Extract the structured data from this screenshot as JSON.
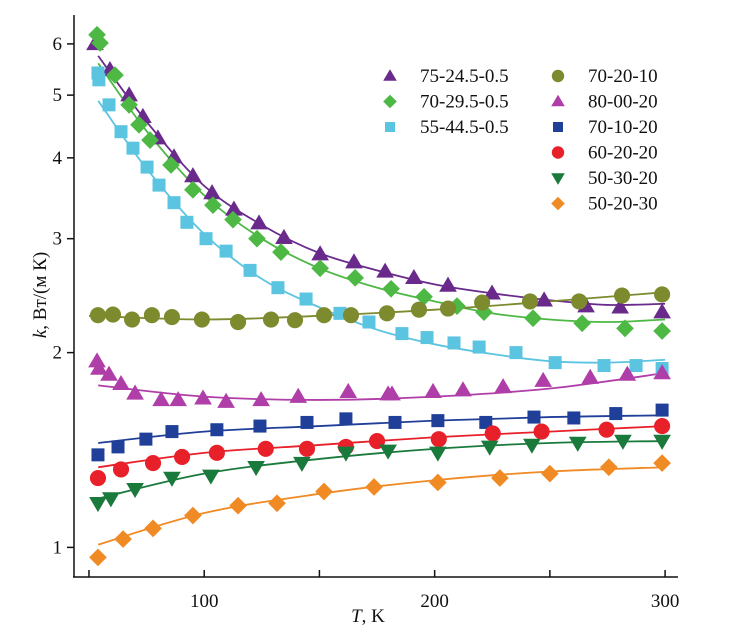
{
  "chart_data": {
    "type": "scatter",
    "title": "",
    "xlabel_italic": "T",
    "xlabel_rest": ", K",
    "ylabel_italic": "k",
    "ylabel_rest": ", Вт/(м К)",
    "xlim": [
      43.5,
      305.6
    ],
    "ylim": [
      0.9,
      6.65
    ],
    "yscale": "log",
    "x_ticks": [
      50,
      100,
      150,
      200,
      250,
      300
    ],
    "x_tick_labels": [
      "",
      "100",
      "",
      "200",
      "",
      "300"
    ],
    "y_ticks": [
      1,
      2,
      3,
      4,
      5,
      6
    ],
    "y_tick_labels": [
      "1",
      "2",
      "3",
      "4",
      "5",
      "6"
    ],
    "grid": false,
    "legend_position": "top-right",
    "series": [
      {
        "name": "75-24.5-0.5",
        "marker": "triangle-up",
        "color": "#6a2a8c",
        "legend_column": 0,
        "points": [
          [
            52.6,
            6.0
          ],
          [
            59.1,
            5.47
          ],
          [
            67.4,
            5.0
          ],
          [
            73.4,
            4.63
          ],
          [
            79.9,
            4.29
          ],
          [
            86.9,
            4.01
          ],
          [
            95.1,
            3.75
          ],
          [
            103.4,
            3.53
          ],
          [
            112.9,
            3.33
          ],
          [
            123.8,
            3.17
          ],
          [
            134.6,
            3.01
          ],
          [
            150.3,
            2.84
          ],
          [
            165.0,
            2.76
          ],
          [
            178.5,
            2.67
          ],
          [
            191.0,
            2.61
          ],
          [
            205.8,
            2.54
          ],
          [
            224.9,
            2.47
          ],
          [
            247.5,
            2.41
          ],
          [
            265.7,
            2.36
          ],
          [
            280.5,
            2.35
          ],
          [
            298.7,
            2.31
          ]
        ],
        "fit": [
          [
            54,
            5.75
          ],
          [
            75,
            4.55
          ],
          [
            100,
            3.62
          ],
          [
            125,
            3.15
          ],
          [
            150,
            2.85
          ],
          [
            175,
            2.68
          ],
          [
            200,
            2.55
          ],
          [
            225,
            2.47
          ],
          [
            250,
            2.41
          ],
          [
            275,
            2.37
          ],
          [
            300,
            2.38
          ]
        ]
      },
      {
        "name": "70-29.5-0.5",
        "marker": "diamond",
        "color": "#4db843",
        "legend_column": 0,
        "points": [
          [
            53.5,
            6.2
          ],
          [
            54.8,
            6.02
          ],
          [
            61.3,
            5.37
          ],
          [
            67.4,
            4.83
          ],
          [
            71.7,
            4.5
          ],
          [
            76.5,
            4.26
          ],
          [
            85.6,
            3.9
          ],
          [
            95.1,
            3.57
          ],
          [
            103.8,
            3.38
          ],
          [
            112.5,
            3.21
          ],
          [
            122.9,
            3.0
          ],
          [
            133.3,
            2.86
          ],
          [
            150.3,
            2.7
          ],
          [
            165.5,
            2.61
          ],
          [
            181.1,
            2.51
          ],
          [
            195.4,
            2.44
          ],
          [
            209.7,
            2.36
          ],
          [
            221.4,
            2.31
          ],
          [
            242.7,
            2.26
          ],
          [
            264.0,
            2.22
          ],
          [
            282.6,
            2.18
          ],
          [
            298.7,
            2.16
          ]
        ],
        "fit": [
          [
            54,
            5.6
          ],
          [
            75,
            4.4
          ],
          [
            100,
            3.5
          ],
          [
            125,
            3.0
          ],
          [
            150,
            2.7
          ],
          [
            175,
            2.52
          ],
          [
            200,
            2.4
          ],
          [
            225,
            2.3
          ],
          [
            250,
            2.25
          ],
          [
            275,
            2.23
          ],
          [
            300,
            2.25
          ]
        ]
      },
      {
        "name": "55-44.5-0.5",
        "marker": "square",
        "color": "#5bc4e0",
        "legend_column": 0,
        "points": [
          [
            53.9,
            5.41
          ],
          [
            54.3,
            5.28
          ],
          [
            58.7,
            4.83
          ],
          [
            63.9,
            4.39
          ],
          [
            69.1,
            4.14
          ],
          [
            75.2,
            3.87
          ],
          [
            80.4,
            3.63
          ],
          [
            86.9,
            3.41
          ],
          [
            92.5,
            3.18
          ],
          [
            100.8,
            3.0
          ],
          [
            109.5,
            2.87
          ],
          [
            119.9,
            2.68
          ],
          [
            132.0,
            2.52
          ],
          [
            144.2,
            2.42
          ],
          [
            158.9,
            2.3
          ],
          [
            171.5,
            2.23
          ],
          [
            185.8,
            2.14
          ],
          [
            196.7,
            2.11
          ],
          [
            208.4,
            2.07
          ],
          [
            219.3,
            2.04
          ],
          [
            235.3,
            2.0
          ],
          [
            252.3,
            1.93
          ],
          [
            273.5,
            1.91
          ],
          [
            287.4,
            1.91
          ],
          [
            298.7,
            1.89
          ]
        ],
        "fit": [
          [
            54,
            4.9
          ],
          [
            75,
            3.85
          ],
          [
            100,
            3.05
          ],
          [
            125,
            2.6
          ],
          [
            150,
            2.35
          ],
          [
            175,
            2.17
          ],
          [
            200,
            2.06
          ],
          [
            225,
            1.99
          ],
          [
            250,
            1.94
          ],
          [
            275,
            1.93
          ],
          [
            300,
            1.95
          ]
        ]
      },
      {
        "name": "70-20-10",
        "marker": "circle",
        "color": "#7d8a2e",
        "legend_column": 1,
        "points": [
          [
            53.9,
            2.285
          ],
          [
            60.4,
            2.29
          ],
          [
            68.7,
            2.25
          ],
          [
            77.3,
            2.285
          ],
          [
            86.0,
            2.27
          ],
          [
            99.0,
            2.25
          ],
          [
            114.7,
            2.23
          ],
          [
            129.0,
            2.25
          ],
          [
            139.4,
            2.245
          ],
          [
            152.0,
            2.285
          ],
          [
            163.7,
            2.285
          ],
          [
            179.3,
            2.3
          ],
          [
            193.2,
            2.33
          ],
          [
            205.8,
            2.34
          ],
          [
            220.6,
            2.39
          ],
          [
            241.4,
            2.4
          ],
          [
            262.7,
            2.4
          ],
          [
            281.3,
            2.45
          ],
          [
            298.7,
            2.46
          ]
        ],
        "fit": [
          [
            50,
            2.28
          ],
          [
            100,
            2.25
          ],
          [
            150,
            2.28
          ],
          [
            200,
            2.33
          ],
          [
            250,
            2.4
          ],
          [
            300,
            2.48
          ]
        ]
      },
      {
        "name": "80-00-20",
        "marker": "triangle-up",
        "color": "#b03ea8",
        "legend_column": 1,
        "points": [
          [
            53.5,
            1.94
          ],
          [
            54.3,
            1.89
          ],
          [
            58.7,
            1.85
          ],
          [
            63.9,
            1.79
          ],
          [
            70.0,
            1.73
          ],
          [
            81.3,
            1.69
          ],
          [
            88.7,
            1.69
          ],
          [
            99.5,
            1.7
          ],
          [
            109.5,
            1.68
          ],
          [
            124.7,
            1.69
          ],
          [
            140.8,
            1.71
          ],
          [
            162.5,
            1.74
          ],
          [
            179.8,
            1.725
          ],
          [
            181.5,
            1.725
          ],
          [
            199.3,
            1.74
          ],
          [
            212.3,
            1.75
          ],
          [
            229.7,
            1.77
          ],
          [
            247.1,
            1.81
          ],
          [
            267.5,
            1.83
          ],
          [
            283.6,
            1.85
          ],
          [
            298.7,
            1.86
          ]
        ],
        "fit": [
          [
            54,
            1.78
          ],
          [
            100,
            1.71
          ],
          [
            150,
            1.69
          ],
          [
            200,
            1.71
          ],
          [
            250,
            1.76
          ],
          [
            300,
            1.86
          ]
        ]
      },
      {
        "name": "70-10-20",
        "marker": "square",
        "color": "#1f3f99",
        "legend_column": 1,
        "points": [
          [
            53.9,
            1.39
          ],
          [
            62.6,
            1.43
          ],
          [
            74.7,
            1.47
          ],
          [
            86.0,
            1.51
          ],
          [
            105.5,
            1.52
          ],
          [
            124.2,
            1.54
          ],
          [
            144.6,
            1.56
          ],
          [
            161.5,
            1.58
          ],
          [
            182.8,
            1.56
          ],
          [
            201.4,
            1.57
          ],
          [
            222.2,
            1.56
          ],
          [
            243.1,
            1.59
          ],
          [
            260.4,
            1.585
          ],
          [
            278.6,
            1.61
          ],
          [
            298.7,
            1.63
          ]
        ],
        "fit": [
          [
            54,
            1.45
          ],
          [
            100,
            1.51
          ],
          [
            150,
            1.54
          ],
          [
            200,
            1.57
          ],
          [
            250,
            1.59
          ],
          [
            300,
            1.6
          ]
        ]
      },
      {
        "name": "60-20-20",
        "marker": "circle",
        "color": "#e8202a",
        "legend_column": 1,
        "points": [
          [
            53.9,
            1.28
          ],
          [
            63.9,
            1.32
          ],
          [
            77.8,
            1.35
          ],
          [
            90.4,
            1.38
          ],
          [
            105.5,
            1.4
          ],
          [
            126.7,
            1.42
          ],
          [
            144.6,
            1.42
          ],
          [
            161.5,
            1.43
          ],
          [
            175.0,
            1.46
          ],
          [
            201.8,
            1.47
          ],
          [
            225.2,
            1.5
          ],
          [
            246.4,
            1.51
          ],
          [
            274.6,
            1.52
          ],
          [
            298.7,
            1.54
          ]
        ],
        "fit": [
          [
            54,
            1.33
          ],
          [
            100,
            1.4
          ],
          [
            150,
            1.44
          ],
          [
            200,
            1.48
          ],
          [
            250,
            1.51
          ],
          [
            300,
            1.54
          ]
        ]
      },
      {
        "name": "50-30-20",
        "marker": "triangle-down",
        "color": "#1a7a3c",
        "legend_column": 1,
        "points": [
          [
            53.9,
            1.17
          ],
          [
            59.5,
            1.19
          ],
          [
            70.0,
            1.23
          ],
          [
            86.0,
            1.28
          ],
          [
            102.9,
            1.29
          ],
          [
            122.5,
            1.33
          ],
          [
            142.4,
            1.35
          ],
          [
            161.5,
            1.4
          ],
          [
            179.8,
            1.41
          ],
          [
            201.4,
            1.4
          ],
          [
            223.9,
            1.43
          ],
          [
            242.2,
            1.44
          ],
          [
            262.1,
            1.45
          ],
          [
            281.7,
            1.46
          ],
          [
            298.7,
            1.46
          ]
        ],
        "fit": [
          [
            54,
            1.19
          ],
          [
            100,
            1.3
          ],
          [
            150,
            1.37
          ],
          [
            200,
            1.42
          ],
          [
            250,
            1.45
          ],
          [
            300,
            1.46
          ]
        ]
      },
      {
        "name": "50-20-30",
        "marker": "diamond",
        "color": "#f08a24",
        "legend_column": 1,
        "points": [
          [
            53.9,
            0.965
          ],
          [
            64.8,
            1.03
          ],
          [
            77.8,
            1.07
          ],
          [
            95.1,
            1.12
          ],
          [
            114.7,
            1.16
          ],
          [
            131.6,
            1.17
          ],
          [
            152.0,
            1.22
          ],
          [
            173.7,
            1.24
          ],
          [
            201.4,
            1.26
          ],
          [
            228.3,
            1.28
          ],
          [
            250.0,
            1.3
          ],
          [
            275.6,
            1.33
          ],
          [
            298.7,
            1.35
          ]
        ],
        "fit": [
          [
            54,
            1.01
          ],
          [
            100,
            1.13
          ],
          [
            150,
            1.21
          ],
          [
            200,
            1.27
          ],
          [
            250,
            1.31
          ],
          [
            300,
            1.33
          ]
        ]
      }
    ]
  }
}
